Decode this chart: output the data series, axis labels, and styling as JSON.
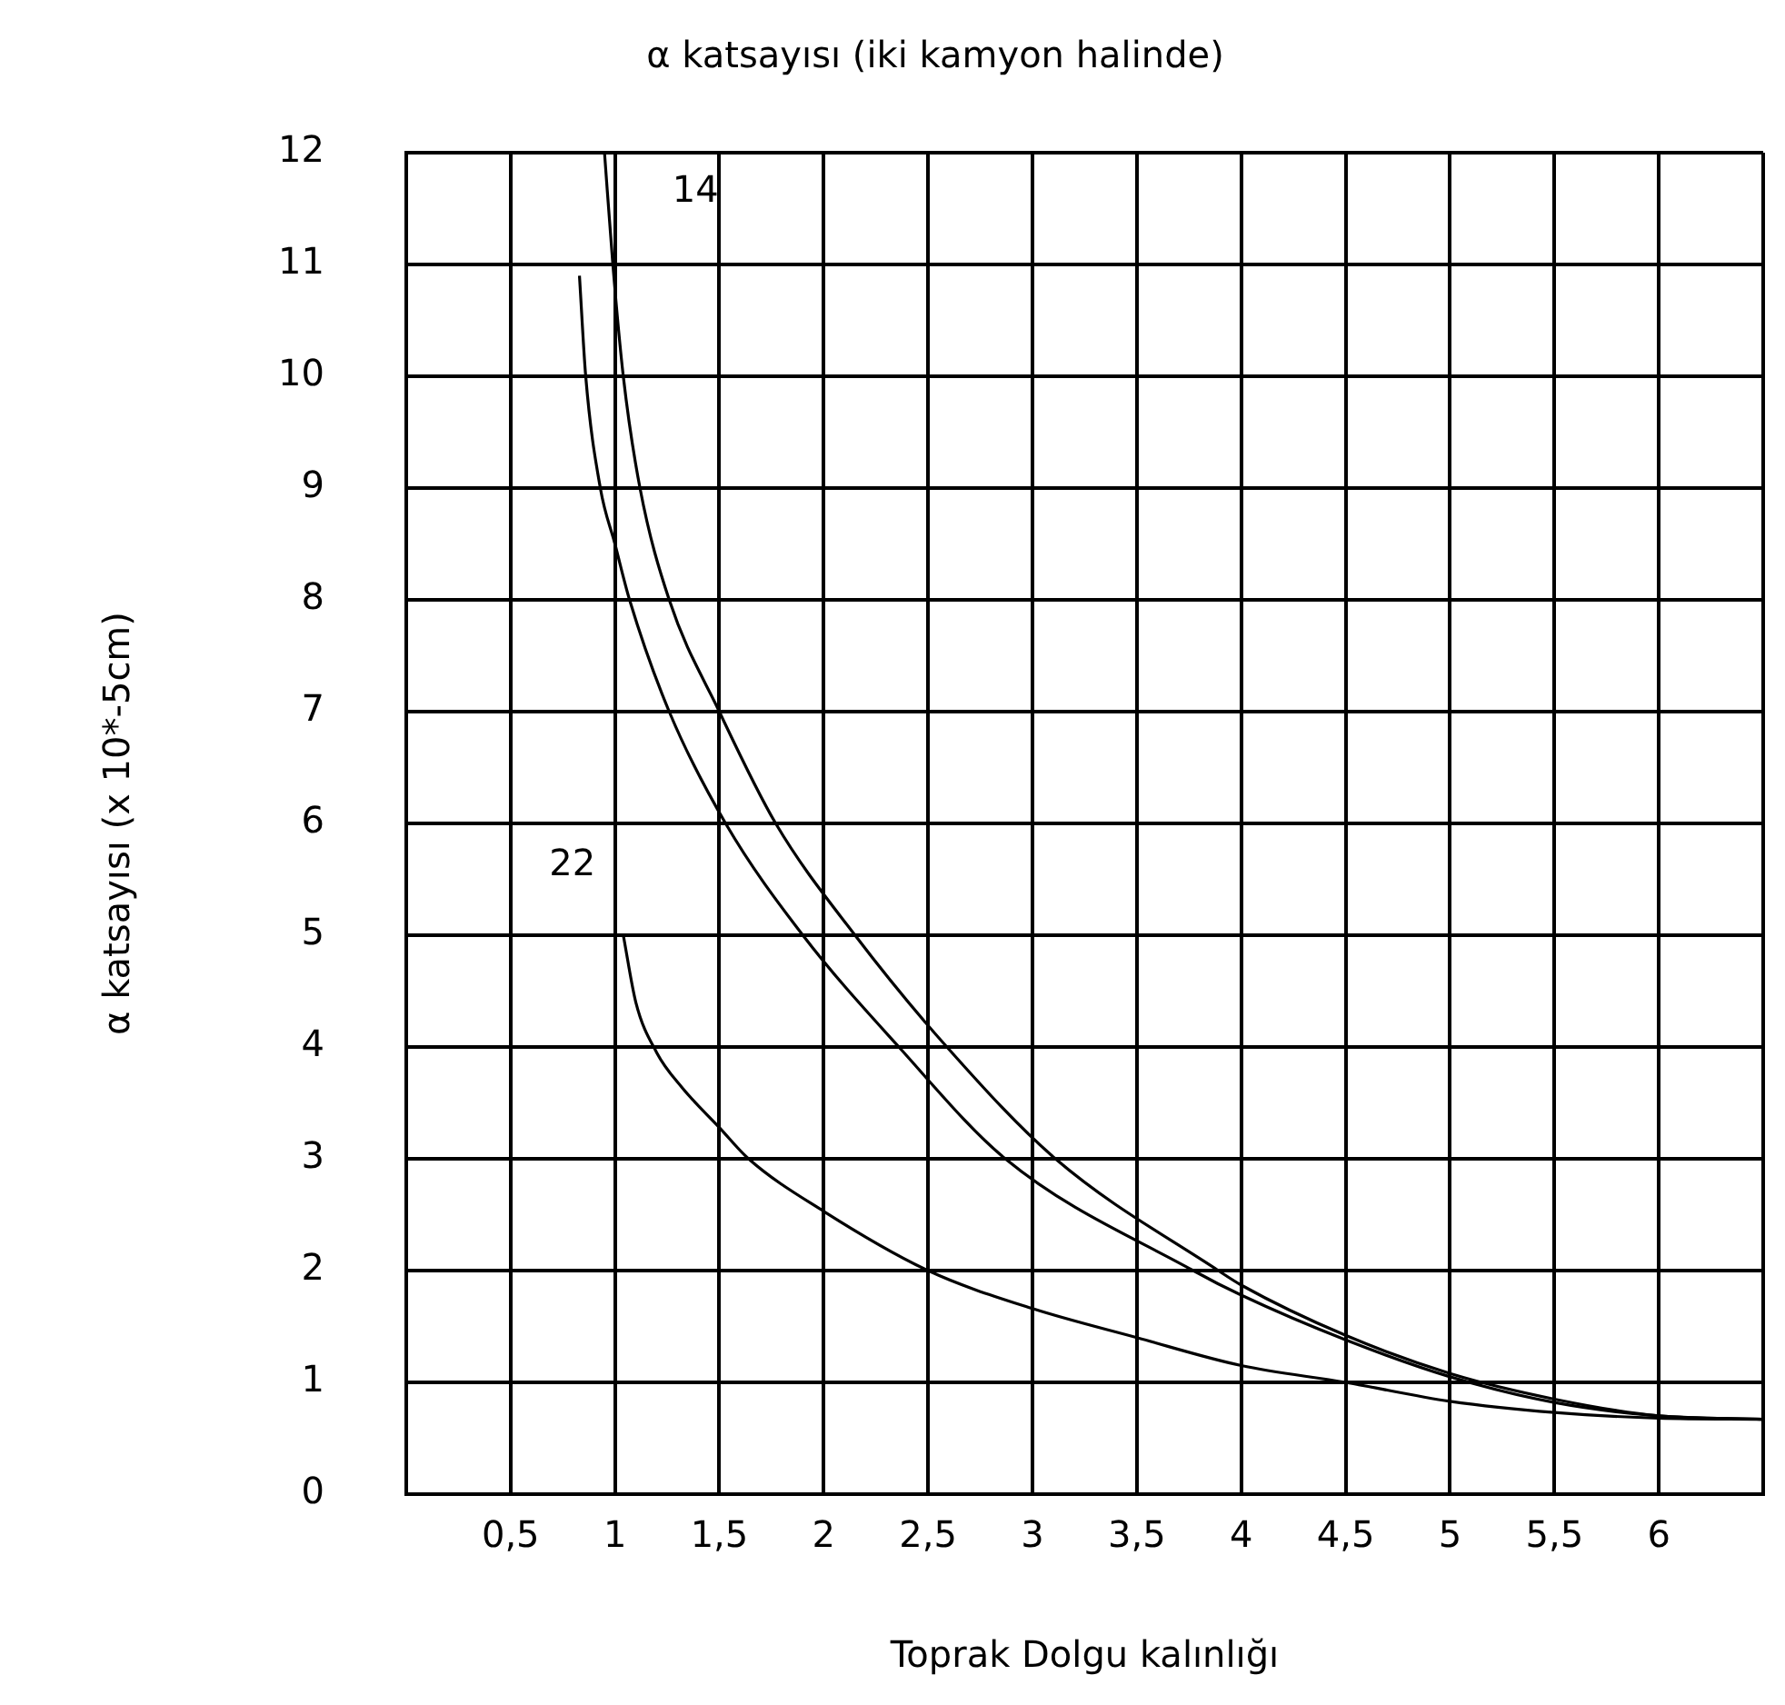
{
  "chart_data": {
    "type": "line",
    "title": "α katsayısı (iki kamyon halinde)",
    "xlabel": "Toprak Dolgu kalınlığı",
    "ylabel": "α katsayısı (x 10*-5cm)",
    "xlim": [
      0,
      6.5
    ],
    "xticks": [
      {
        "value": 0,
        "label": null
      },
      {
        "value": 0.5,
        "label": "0,5"
      },
      1,
      {
        "value": 1.5,
        "label": "1,5"
      },
      2,
      {
        "value": 2.5,
        "label": "2,5"
      },
      3,
      {
        "value": 3.5,
        "label": "3,5"
      },
      4,
      {
        "value": 4.5,
        "label": "4,5"
      },
      5,
      {
        "value": 5.5,
        "label": "5,5"
      },
      6,
      {
        "value": 6.5,
        "label": null
      }
    ],
    "ylim": [
      0,
      12
    ],
    "yticks": [
      0,
      1,
      2,
      3,
      4,
      5,
      6,
      7,
      8,
      9,
      10,
      11,
      12
    ],
    "grid": true,
    "legend": false,
    "marker": "none",
    "line_style": "solid",
    "series": [
      {
        "name": "14",
        "color": "#000000",
        "x": [
          0.95,
          0.99,
          1.04,
          1.12,
          1.26,
          1.5,
          1.77,
          2.15,
          2.59,
          3.11,
          3.89,
          4.0,
          4.5,
          5.0,
          5.5,
          6.0,
          6.5
        ],
        "values": [
          12,
          11,
          10,
          9,
          8,
          7,
          6,
          5,
          4,
          3,
          2,
          1.87,
          1.42,
          1.08,
          0.85,
          0.7,
          0.67
        ]
      },
      {
        "color": "#000000",
        "x": [
          0.83,
          0.86,
          0.93,
          1.0,
          1.07,
          1.26,
          1.53,
          1.9,
          2.36,
          2.87,
          3.77,
          4.0,
          4.5,
          5.0,
          5.5,
          6.0,
          6.5
        ],
        "values": [
          10.9,
          10,
          9,
          8.5,
          8,
          7,
          6,
          5,
          4,
          3,
          2,
          1.78,
          1.38,
          1.05,
          0.82,
          0.7,
          0.67
        ]
      },
      {
        "name": "22",
        "color": "#000000",
        "x": [
          1.04,
          1.1,
          1.2,
          1.32,
          1.5,
          1.64,
          2.0,
          2.5,
          3.0,
          3.5,
          4.0,
          4.5,
          5.0,
          5.5,
          6.0,
          6.5
        ],
        "values": [
          5.0,
          4.4,
          3.95,
          3.64,
          3.28,
          3.0,
          2.53,
          2.0,
          1.66,
          1.4,
          1.15,
          1.0,
          0.83,
          0.73,
          0.68,
          0.67
        ]
      }
    ]
  }
}
